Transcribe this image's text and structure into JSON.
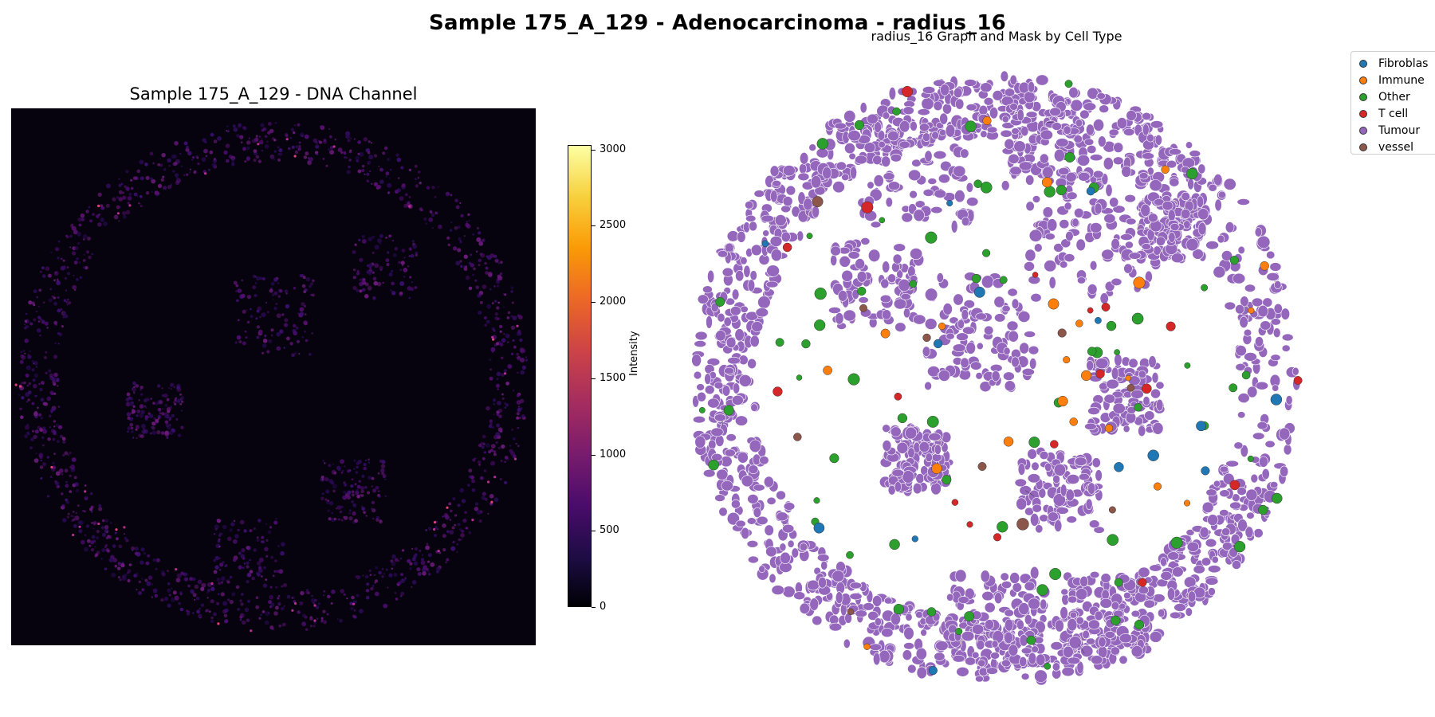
{
  "figure": {
    "suptitle": "Sample 175_A_129 - Adenocarcinoma - radius_16"
  },
  "left_panel": {
    "title": "Sample 175_A_129 - DNA Channel",
    "colorbar": {
      "label": "Intensity",
      "ticks": [
        "0",
        "500",
        "1000",
        "1500",
        "2000",
        "2500",
        "3000"
      ],
      "range": [
        0,
        3030
      ],
      "colormap": "inferno"
    }
  },
  "right_panel": {
    "title": "radius_16 Graph and Mask by Cell Type",
    "legend": [
      {
        "label": "Fibroblas",
        "color": "#1f77b4"
      },
      {
        "label": "Immune",
        "color": "#ff7f0e"
      },
      {
        "label": "Other",
        "color": "#2ca02c"
      },
      {
        "label": "T cell",
        "color": "#d62728"
      },
      {
        "label": "Tumour",
        "color": "#9467bd"
      },
      {
        "label": "vessel",
        "color": "#8c564b"
      }
    ]
  }
}
